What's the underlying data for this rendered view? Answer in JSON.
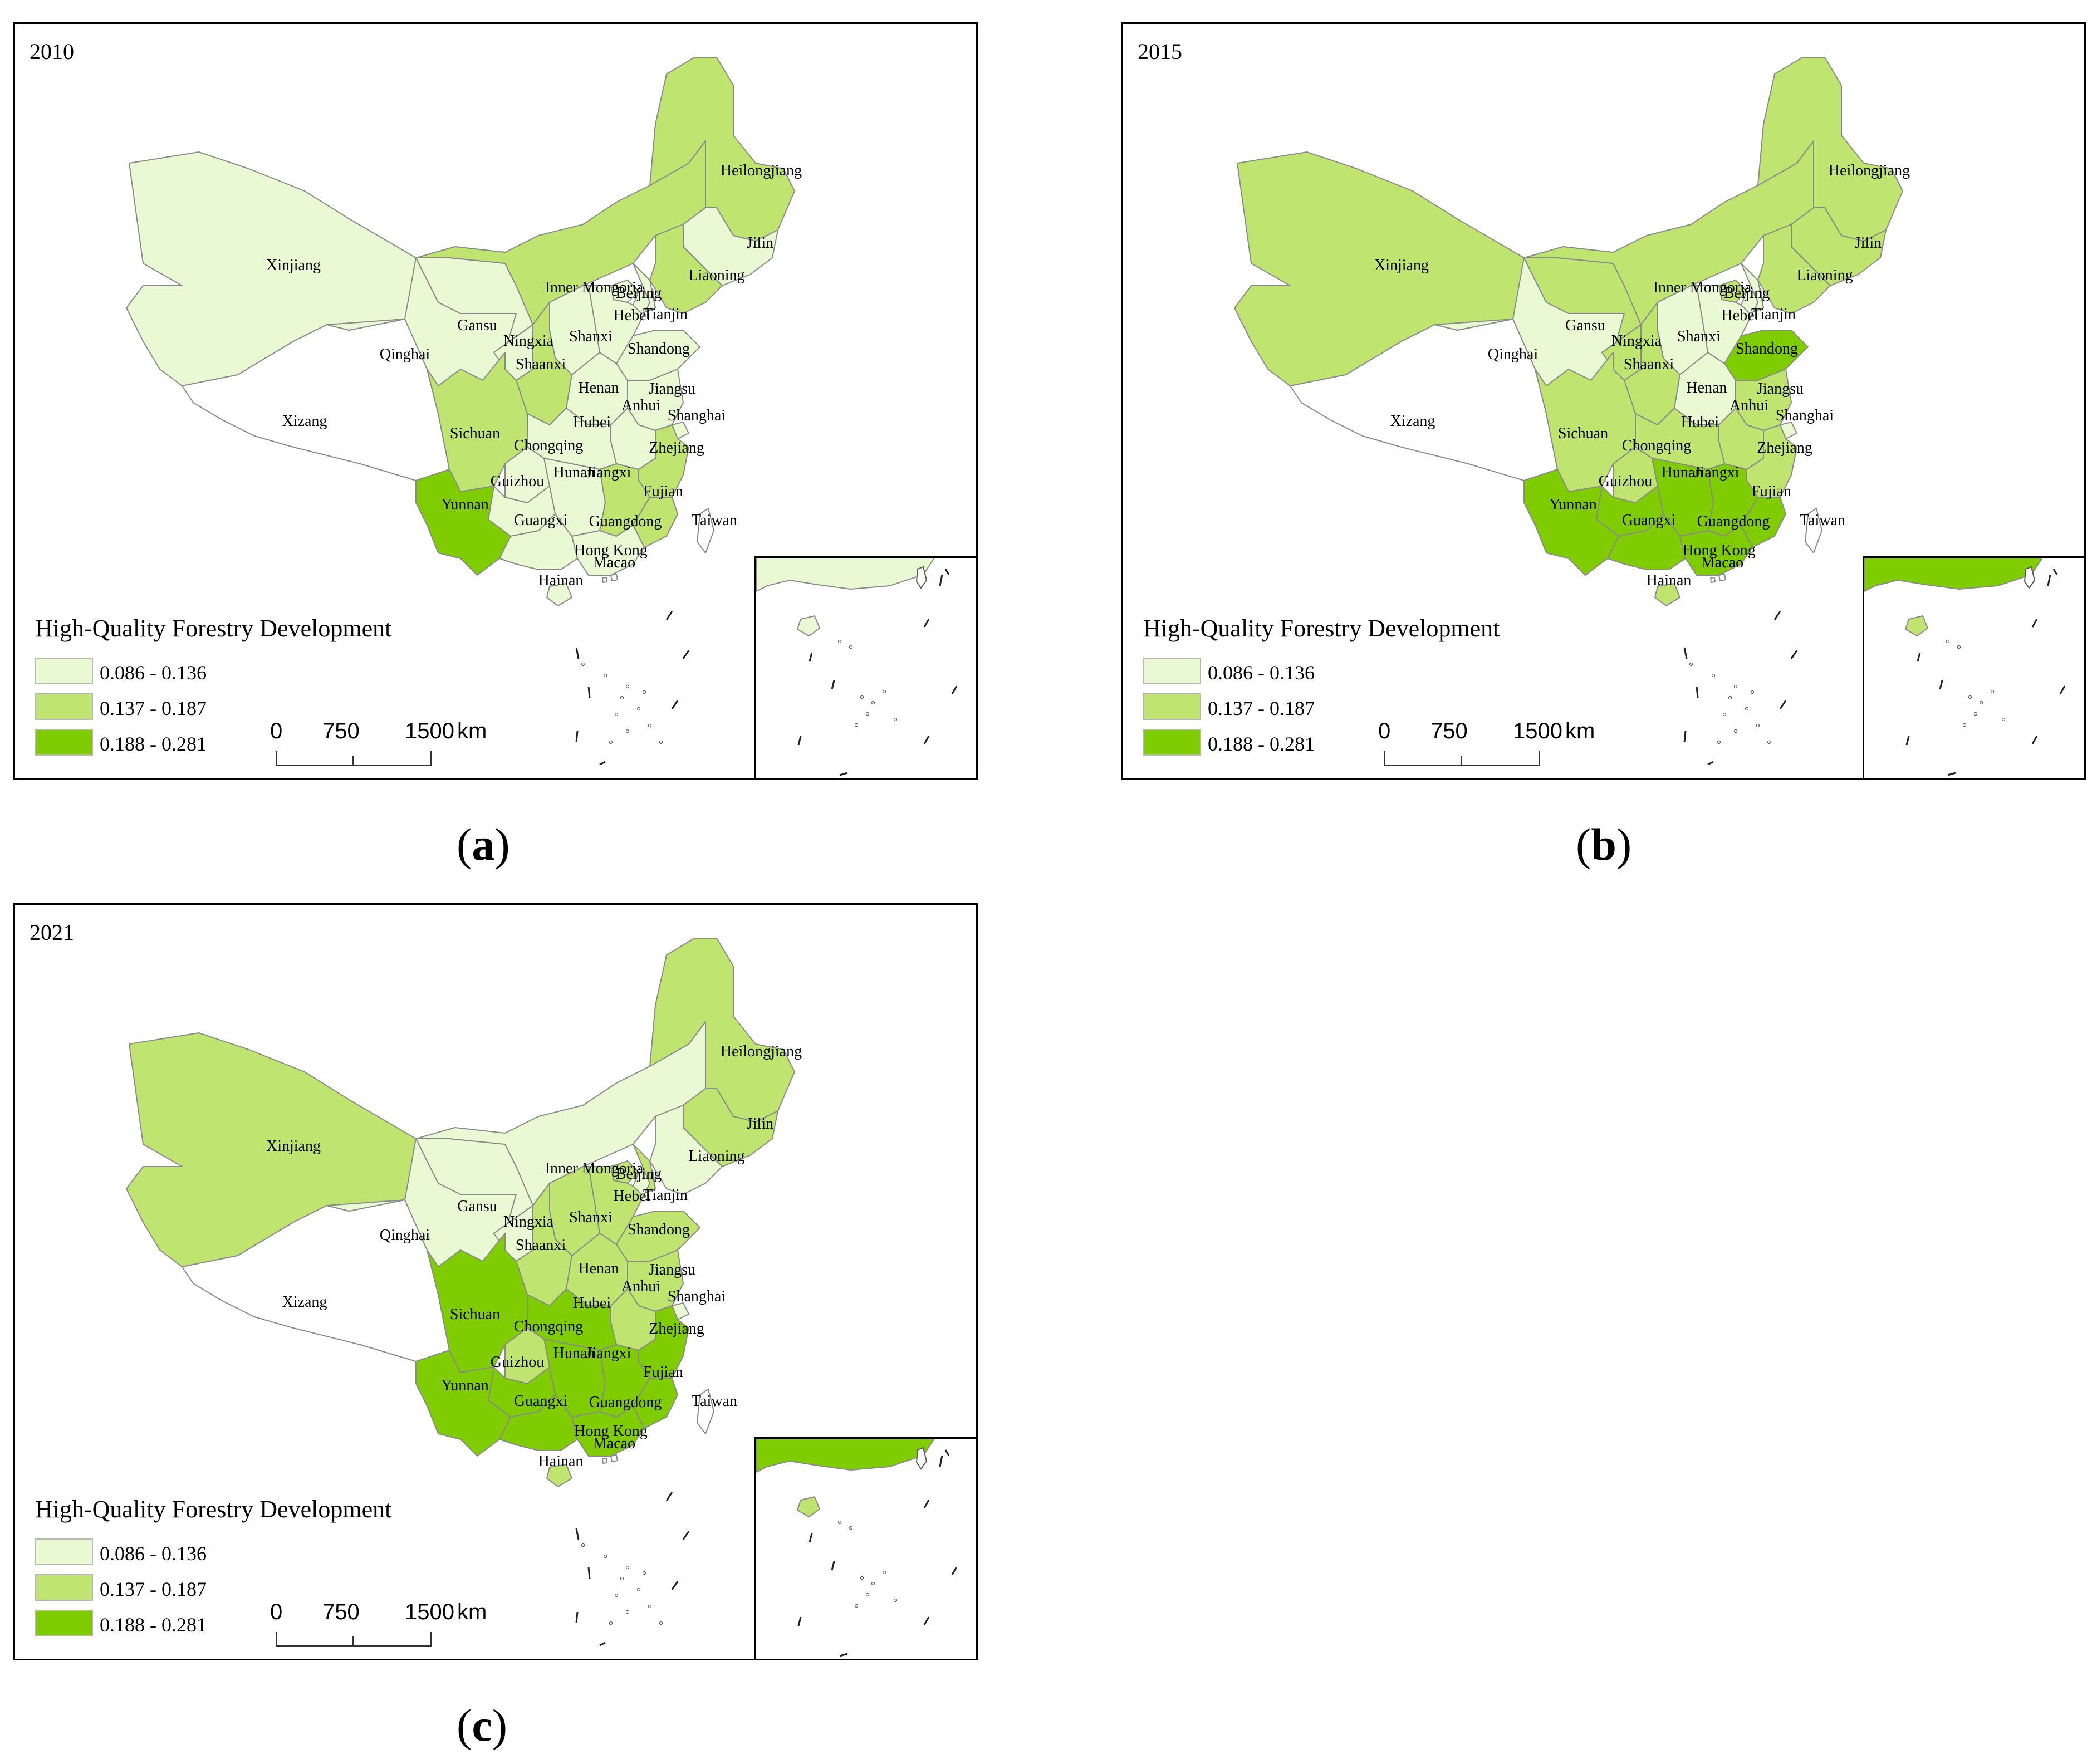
{
  "legend": {
    "title": "High-Quality Forestry Development",
    "classes": [
      {
        "label": "0.086 - 0.136",
        "color": "#e8f9d3"
      },
      {
        "label": "0.137 - 0.187",
        "color": "#bfe46f"
      },
      {
        "label": "0.188 - 0.281",
        "color": "#7fcc00"
      }
    ]
  },
  "scalebar": {
    "ticks": [
      "0",
      "750",
      "1500"
    ],
    "unit": "km"
  },
  "no_data_color": "#ffffff",
  "province_names": {
    "Xinjiang": "Xinjiang",
    "Xizang": "Xizang",
    "Qinghai": "Qinghai",
    "Gansu": "Gansu",
    "InnerMongoria": "Inner Mongoria",
    "Heilongjiang": "Heilongjiang",
    "Jilin": "Jilin",
    "Liaoning": "Liaoning",
    "Beijing": "Beijing",
    "Tianjin": "Tianjin",
    "Hebei": "Hebei",
    "Shanxi": "Shanxi",
    "Shandong": "Shandong",
    "Ningxia": "Ningxia",
    "Shaanxi": "Shaanxi",
    "Henan": "Henan",
    "Jiangsu": "Jiangsu",
    "Anhui": "Anhui",
    "Shanghai": "Shanghai",
    "Hubei": "Hubei",
    "Sichuan": "Sichuan",
    "Chongqing": "Chongqing",
    "Zhejiang": "Zhejiang",
    "Hunan": "Hunan",
    "Jiangxi": "Jiangxi",
    "Guizhou": "Guizhou",
    "Fujian": "Fujian",
    "Yunnan": "Yunnan",
    "Guangxi": "Guangxi",
    "Guangdong": "Guangdong",
    "Taiwan": "Taiwan",
    "HongKong": "Hong Kong",
    "Macao": "Macao",
    "Hainan": "Hainan"
  },
  "maps": [
    {
      "year": "2010",
      "caption": "a",
      "classes": {
        "Xinjiang": 0,
        "Xizang": -1,
        "Qinghai": 0,
        "Gansu": 0,
        "InnerMongoria": 1,
        "Heilongjiang": 1,
        "Jilin": 0,
        "Liaoning": 1,
        "Beijing": 0,
        "Tianjin": 0,
        "Hebei": 0,
        "Shanxi": 0,
        "Shandong": 0,
        "Ningxia": 0,
        "Shaanxi": 1,
        "Henan": 0,
        "Jiangsu": 0,
        "Anhui": 0,
        "Shanghai": 0,
        "Hubei": 0,
        "Sichuan": 1,
        "Chongqing": 0,
        "Zhejiang": 1,
        "Hunan": 0,
        "Jiangxi": 1,
        "Guizhou": 0,
        "Fujian": 1,
        "Yunnan": 2,
        "Guangxi": 0,
        "Guangdong": 0,
        "Taiwan": -1,
        "HongKong": -1,
        "Macao": -1,
        "Hainan": 0
      }
    },
    {
      "year": "2015",
      "caption": "b",
      "classes": {
        "Xinjiang": 1,
        "Xizang": -1,
        "Qinghai": 0,
        "Gansu": 1,
        "InnerMongoria": 1,
        "Heilongjiang": 1,
        "Jilin": 1,
        "Liaoning": 1,
        "Beijing": 1,
        "Tianjin": 0,
        "Hebei": 0,
        "Shanxi": 0,
        "Shandong": 2,
        "Ningxia": 1,
        "Shaanxi": 1,
        "Henan": 0,
        "Jiangsu": 1,
        "Anhui": 1,
        "Shanghai": 0,
        "Hubei": 1,
        "Sichuan": 1,
        "Chongqing": 1,
        "Zhejiang": 1,
        "Hunan": 2,
        "Jiangxi": 2,
        "Guizhou": 2,
        "Fujian": 2,
        "Yunnan": 2,
        "Guangxi": 2,
        "Guangdong": 2,
        "Taiwan": -1,
        "HongKong": -1,
        "Macao": -1,
        "Hainan": 1
      }
    },
    {
      "year": "2021",
      "caption": "c",
      "classes": {
        "Xinjiang": 1,
        "Xizang": -1,
        "Qinghai": 0,
        "Gansu": 0,
        "InnerMongoria": 0,
        "Heilongjiang": 1,
        "Jilin": 1,
        "Liaoning": 0,
        "Beijing": 1,
        "Tianjin": 0,
        "Hebei": 1,
        "Shanxi": 1,
        "Shandong": 1,
        "Ningxia": 0,
        "Shaanxi": 1,
        "Henan": 1,
        "Jiangsu": 1,
        "Anhui": 1,
        "Shanghai": 0,
        "Hubei": 2,
        "Sichuan": 2,
        "Chongqing": 1,
        "Zhejiang": 2,
        "Hunan": 2,
        "Jiangxi": 2,
        "Guizhou": 2,
        "Fujian": 2,
        "Yunnan": 2,
        "Guangxi": 2,
        "Guangdong": 2,
        "Taiwan": -1,
        "HongKong": -1,
        "Macao": -1,
        "Hainan": 1
      }
    }
  ]
}
